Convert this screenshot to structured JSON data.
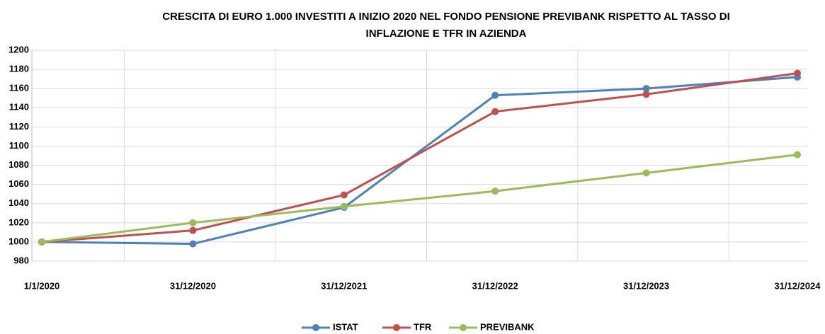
{
  "chart_data": {
    "type": "line",
    "title": [
      "CRESCITA DI EURO 1.000 INVESTITI A INIZIO 2020 NEL FONDO PENSIONE PREVIBANK RISPETTO AL TASSO DI",
      "INFLAZIONE E TFR IN AZIENDA"
    ],
    "categories": [
      "1/1/2020",
      "31/12/2020",
      "31/12/2021",
      "31/12/2022",
      "31/12/2023",
      "31/12/2024"
    ],
    "series": [
      {
        "name": "ISTAT",
        "color": "#4f81bd",
        "values": [
          1000,
          998,
          1036,
          1153,
          1160,
          1172
        ]
      },
      {
        "name": "TFR",
        "color": "#c0504d",
        "values": [
          1000,
          1012,
          1049,
          1136,
          1154,
          1176
        ]
      },
      {
        "name": "PREVIBANK",
        "color": "#9bbb59",
        "values": [
          1000,
          1020,
          1037,
          1053,
          1072,
          1091
        ]
      }
    ],
    "ylim": [
      980,
      1200
    ],
    "yticks": [
      980,
      1000,
      1020,
      1040,
      1060,
      1080,
      1100,
      1120,
      1140,
      1160,
      1180,
      1200
    ],
    "grid": true,
    "legend": "bottom"
  }
}
